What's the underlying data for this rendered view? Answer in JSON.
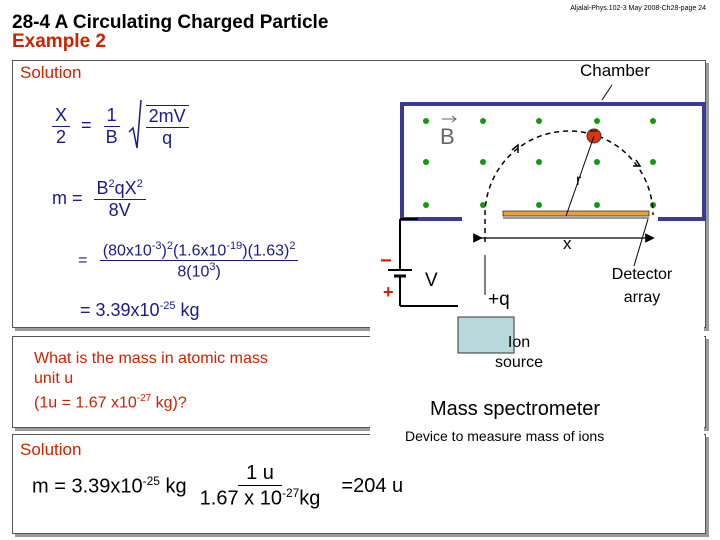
{
  "header": {
    "title_line1": "28-4 A Circulating Charged Particle",
    "title_line2": "Example 2",
    "meta": "Aljalal-Phys.102-3 May 2008-Ch28-page 24"
  },
  "solution_label": "Solution",
  "solution_label_2": "Solution",
  "equations": {
    "e1_lhs_num": "X",
    "e1_lhs_den": "2",
    "e1_eq": "=",
    "e1_r_num": "1",
    "e1_r_den": "B",
    "e1_sqrt_num": "2mV",
    "e1_sqrt_den": "q",
    "e2_lhs": "m =",
    "e2_num_a": "B",
    "e2_num_sup1": "2",
    "e2_num_b": "qX",
    "e2_num_sup2": "2",
    "e2_den": "8V",
    "e3_eq": "=",
    "e3_num_a": "(80x10",
    "e3_num_sup1": "-3",
    "e3_num_b": ")",
    "e3_num_sup2": "2",
    "e3_num_c": "(1.6x10",
    "e3_num_sup3": "-19",
    "e3_num_d": ")(1.63)",
    "e3_num_sup4": "2",
    "e3_den_a": "8(10",
    "e3_den_sup": "3",
    "e3_den_b": ")",
    "e4_a": "= 3.39x10",
    "e4_sup": "-25",
    "e4_b": " kg"
  },
  "question": {
    "line1": "What is the mass in atomic mass",
    "line2": "unit u",
    "line3_a": "(1u = 1.67 x10",
    "line3_sup": "-27",
    "line3_b": " kg)?"
  },
  "final": {
    "lhs_a": "m = 3.39x10",
    "lhs_sup": "-25",
    "lhs_b": " kg",
    "num": "1 u",
    "den_a": "1.67 x 10",
    "den_sup": "-27",
    "den_b": "kg",
    "result": "=204 u"
  },
  "diagram": {
    "chamber": "Chamber",
    "b_field": "B",
    "r": "r",
    "x": "x",
    "v": "V",
    "q": "+q",
    "minus": "−",
    "plus": "+",
    "ion_source_1": "Ion",
    "ion_source_2": "source",
    "detector_1": "Detector",
    "detector_2": "array",
    "caption": "Mass spectrometer",
    "subcaption": "Device to measure mass of ions"
  },
  "colors": {
    "accent_red": "#cc2200",
    "equation_blue": "#1a1a8a",
    "chamber_border": "#3a3a99",
    "field_dots": "#119911",
    "ion_source_fill": "#b8d8dc",
    "detector_fill": "#e8a13a"
  }
}
